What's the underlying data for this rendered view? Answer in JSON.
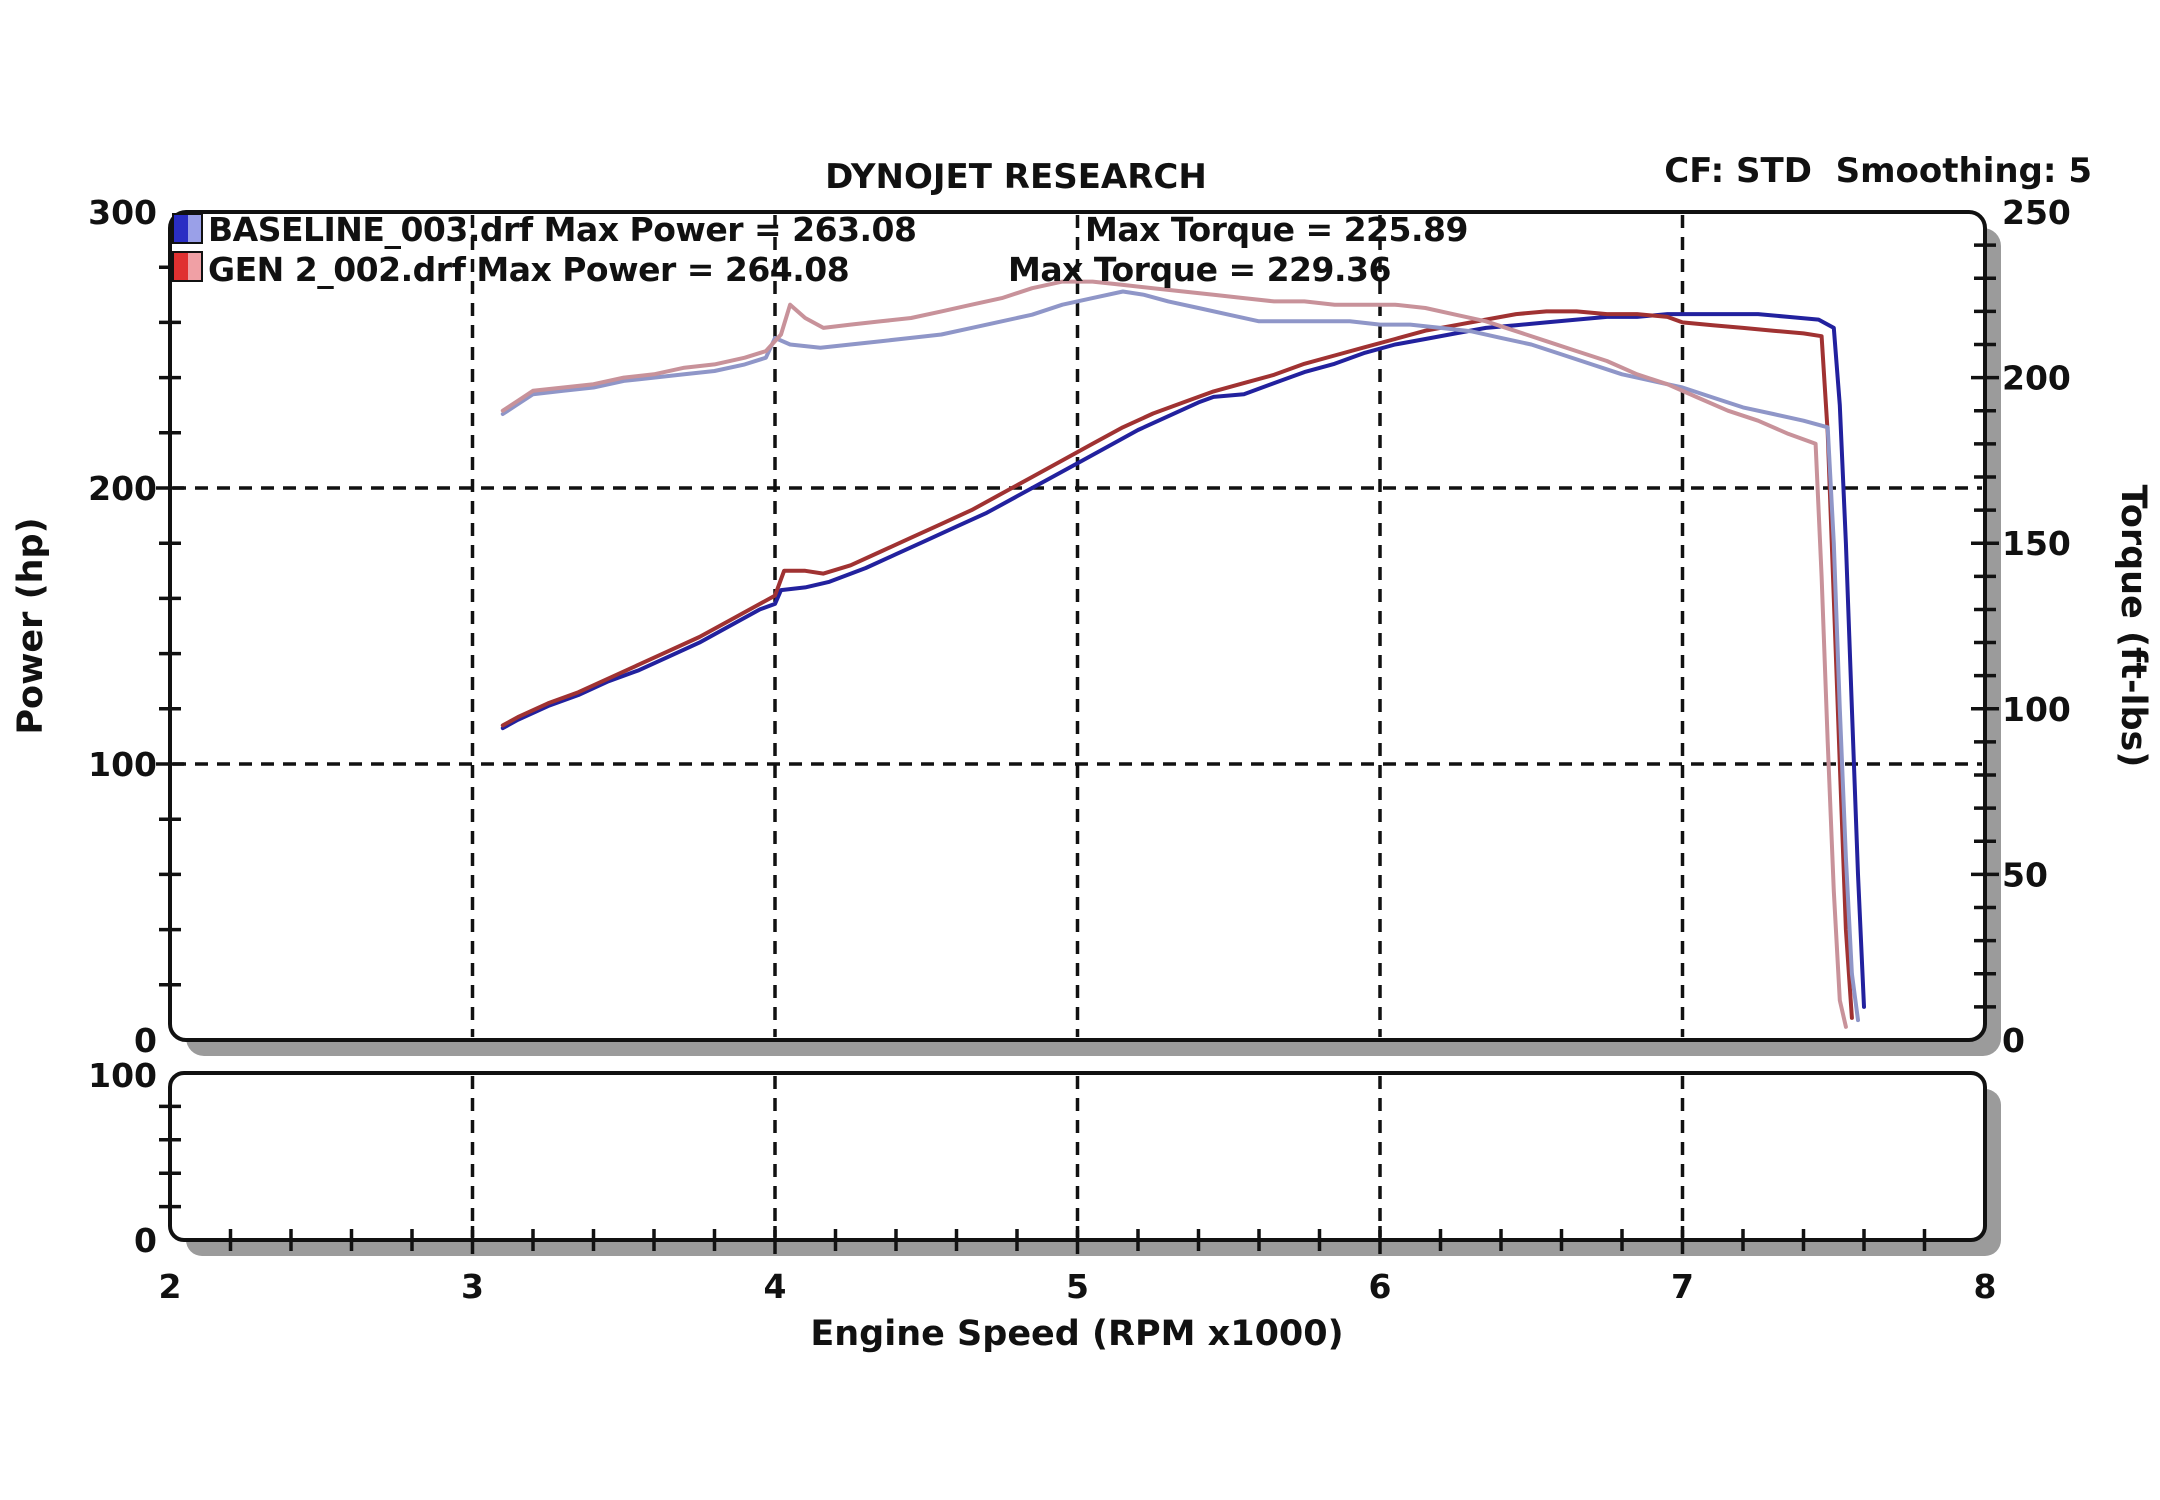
{
  "header": {
    "title": "DYNOJET RESEARCH",
    "corner_info": "CF: STD  Smoothing: 5"
  },
  "chart_data": {
    "type": "line",
    "title": "DYNOJET RESEARCH",
    "corner_info": "CF: STD  Smoothing: 5",
    "xlabel": "Engine Speed (RPM x1000)",
    "ylabel_left": "Power (hp)",
    "ylabel_right": "Torque (ft-lbs)",
    "x_range": [
      2,
      8
    ],
    "y_left_range": [
      0,
      300
    ],
    "y_right_range": [
      0,
      250
    ],
    "sub_panel_range": [
      0,
      100
    ],
    "x_major_ticks": [
      2,
      3,
      4,
      5,
      6,
      7,
      8
    ],
    "x_minor_step": 0.2,
    "y_left_major_ticks": [
      0,
      100,
      200,
      300
    ],
    "y_left_minor_step": 20,
    "y_right_major_ticks": [
      0,
      50,
      100,
      150,
      200,
      250
    ],
    "y_right_minor_step": 10,
    "sub_major_ticks": [
      0,
      100
    ],
    "sub_minor_step": 20,
    "grid_x_values": [
      3,
      4,
      5,
      6,
      7
    ],
    "grid_y_left_values": [
      100,
      200
    ],
    "grid_on": true,
    "legend_position": "top-left",
    "legend": {
      "rows": [
        {
          "label": "BASELINE_003.drf Max Power = 263.08",
          "torque_label": "Max Torque = 225.89",
          "file": "BASELINE_003.drf",
          "max_power": 263.08,
          "max_torque": 225.89,
          "swatch": [
            "#2a2ec4",
            "#9aa0e8"
          ]
        },
        {
          "label": "GEN 2_002.drf Max Power = 264.08",
          "torque_label": "Max Torque = 229.36",
          "file": "GEN 2_002.drf",
          "max_power": 264.08,
          "max_torque": 229.36,
          "swatch": [
            "#e03131",
            "#f0a0a5"
          ]
        }
      ]
    },
    "series": [
      {
        "name": "baseline-power",
        "file": "BASELINE_003.drf",
        "quantity": "power",
        "axis": "left",
        "color": "#22219e",
        "data": [
          [
            3.1,
            113
          ],
          [
            3.15,
            116
          ],
          [
            3.25,
            121
          ],
          [
            3.35,
            125
          ],
          [
            3.45,
            130
          ],
          [
            3.55,
            134
          ],
          [
            3.65,
            139
          ],
          [
            3.75,
            144
          ],
          [
            3.85,
            150
          ],
          [
            3.95,
            156
          ],
          [
            4.0,
            158
          ],
          [
            4.02,
            163
          ],
          [
            4.1,
            164
          ],
          [
            4.18,
            166
          ],
          [
            4.3,
            171
          ],
          [
            4.4,
            176
          ],
          [
            4.5,
            181
          ],
          [
            4.6,
            186
          ],
          [
            4.7,
            191
          ],
          [
            4.8,
            197
          ],
          [
            4.9,
            203
          ],
          [
            5.0,
            209
          ],
          [
            5.1,
            215
          ],
          [
            5.2,
            221
          ],
          [
            5.3,
            226
          ],
          [
            5.4,
            231
          ],
          [
            5.45,
            233
          ],
          [
            5.55,
            234
          ],
          [
            5.65,
            238
          ],
          [
            5.75,
            242
          ],
          [
            5.85,
            245
          ],
          [
            5.95,
            249
          ],
          [
            6.05,
            252
          ],
          [
            6.15,
            254
          ],
          [
            6.25,
            256
          ],
          [
            6.35,
            258
          ],
          [
            6.45,
            259
          ],
          [
            6.55,
            260
          ],
          [
            6.65,
            261
          ],
          [
            6.75,
            262
          ],
          [
            6.85,
            262
          ],
          [
            6.95,
            263
          ],
          [
            7.05,
            263
          ],
          [
            7.15,
            263
          ],
          [
            7.25,
            263
          ],
          [
            7.35,
            262
          ],
          [
            7.45,
            261
          ],
          [
            7.5,
            258
          ],
          [
            7.52,
            230
          ],
          [
            7.54,
            180
          ],
          [
            7.56,
            120
          ],
          [
            7.58,
            60
          ],
          [
            7.6,
            12
          ]
        ]
      },
      {
        "name": "gen2-power",
        "file": "GEN 2_002.drf",
        "quantity": "power",
        "axis": "left",
        "color": "#a03232",
        "data": [
          [
            3.1,
            114
          ],
          [
            3.15,
            117
          ],
          [
            3.25,
            122
          ],
          [
            3.35,
            126
          ],
          [
            3.45,
            131
          ],
          [
            3.55,
            136
          ],
          [
            3.65,
            141
          ],
          [
            3.75,
            146
          ],
          [
            3.85,
            152
          ],
          [
            3.95,
            158
          ],
          [
            4.0,
            161
          ],
          [
            4.03,
            170
          ],
          [
            4.1,
            170
          ],
          [
            4.16,
            169
          ],
          [
            4.25,
            172
          ],
          [
            4.35,
            177
          ],
          [
            4.45,
            182
          ],
          [
            4.55,
            187
          ],
          [
            4.65,
            192
          ],
          [
            4.75,
            198
          ],
          [
            4.85,
            204
          ],
          [
            4.95,
            210
          ],
          [
            5.05,
            216
          ],
          [
            5.15,
            222
          ],
          [
            5.25,
            227
          ],
          [
            5.35,
            231
          ],
          [
            5.45,
            235
          ],
          [
            5.55,
            238
          ],
          [
            5.65,
            241
          ],
          [
            5.75,
            245
          ],
          [
            5.85,
            248
          ],
          [
            5.95,
            251
          ],
          [
            6.05,
            254
          ],
          [
            6.15,
            257
          ],
          [
            6.25,
            259
          ],
          [
            6.35,
            261
          ],
          [
            6.45,
            263
          ],
          [
            6.55,
            264
          ],
          [
            6.65,
            264
          ],
          [
            6.75,
            263
          ],
          [
            6.85,
            263
          ],
          [
            6.95,
            262
          ],
          [
            7.0,
            260
          ],
          [
            7.1,
            259
          ],
          [
            7.2,
            258
          ],
          [
            7.3,
            257
          ],
          [
            7.4,
            256
          ],
          [
            7.46,
            255
          ],
          [
            7.48,
            220
          ],
          [
            7.5,
            160
          ],
          [
            7.52,
            100
          ],
          [
            7.54,
            40
          ],
          [
            7.56,
            8
          ]
        ]
      },
      {
        "name": "baseline-torque",
        "file": "BASELINE_003.drf",
        "quantity": "torque",
        "axis": "right",
        "color": "#8f96c8",
        "data": [
          [
            3.1,
            189
          ],
          [
            3.15,
            192
          ],
          [
            3.2,
            195
          ],
          [
            3.3,
            196
          ],
          [
            3.4,
            197
          ],
          [
            3.5,
            199
          ],
          [
            3.6,
            200
          ],
          [
            3.7,
            201
          ],
          [
            3.8,
            202
          ],
          [
            3.9,
            204
          ],
          [
            3.97,
            206
          ],
          [
            4.0,
            212
          ],
          [
            4.05,
            210
          ],
          [
            4.15,
            209
          ],
          [
            4.25,
            210
          ],
          [
            4.35,
            211
          ],
          [
            4.45,
            212
          ],
          [
            4.55,
            213
          ],
          [
            4.65,
            215
          ],
          [
            4.75,
            217
          ],
          [
            4.85,
            219
          ],
          [
            4.95,
            222
          ],
          [
            5.05,
            224
          ],
          [
            5.15,
            226
          ],
          [
            5.22,
            225
          ],
          [
            5.3,
            223
          ],
          [
            5.4,
            221
          ],
          [
            5.5,
            219
          ],
          [
            5.6,
            217
          ],
          [
            5.75,
            217
          ],
          [
            5.9,
            217
          ],
          [
            6.0,
            216
          ],
          [
            6.1,
            216
          ],
          [
            6.2,
            215
          ],
          [
            6.3,
            214
          ],
          [
            6.4,
            212
          ],
          [
            6.5,
            210
          ],
          [
            6.6,
            207
          ],
          [
            6.7,
            204
          ],
          [
            6.8,
            201
          ],
          [
            6.9,
            199
          ],
          [
            7.0,
            197
          ],
          [
            7.1,
            194
          ],
          [
            7.2,
            191
          ],
          [
            7.3,
            189
          ],
          [
            7.4,
            187
          ],
          [
            7.48,
            185
          ],
          [
            7.5,
            150
          ],
          [
            7.52,
            100
          ],
          [
            7.54,
            55
          ],
          [
            7.56,
            20
          ],
          [
            7.58,
            6
          ]
        ]
      },
      {
        "name": "gen2-torque",
        "file": "GEN 2_002.drf",
        "quantity": "torque",
        "axis": "right",
        "color": "#c8929a",
        "data": [
          [
            3.1,
            190
          ],
          [
            3.15,
            193
          ],
          [
            3.2,
            196
          ],
          [
            3.3,
            197
          ],
          [
            3.4,
            198
          ],
          [
            3.5,
            200
          ],
          [
            3.6,
            201
          ],
          [
            3.7,
            203
          ],
          [
            3.8,
            204
          ],
          [
            3.9,
            206
          ],
          [
            3.97,
            208
          ],
          [
            4.02,
            213
          ],
          [
            4.05,
            222
          ],
          [
            4.1,
            218
          ],
          [
            4.16,
            215
          ],
          [
            4.25,
            216
          ],
          [
            4.35,
            217
          ],
          [
            4.45,
            218
          ],
          [
            4.55,
            220
          ],
          [
            4.65,
            222
          ],
          [
            4.75,
            224
          ],
          [
            4.85,
            227
          ],
          [
            4.95,
            229
          ],
          [
            5.05,
            229
          ],
          [
            5.15,
            228
          ],
          [
            5.25,
            227
          ],
          [
            5.35,
            226
          ],
          [
            5.45,
            225
          ],
          [
            5.55,
            224
          ],
          [
            5.65,
            223
          ],
          [
            5.75,
            223
          ],
          [
            5.85,
            222
          ],
          [
            5.95,
            222
          ],
          [
            6.05,
            222
          ],
          [
            6.15,
            221
          ],
          [
            6.25,
            219
          ],
          [
            6.35,
            217
          ],
          [
            6.45,
            214
          ],
          [
            6.55,
            211
          ],
          [
            6.65,
            208
          ],
          [
            6.75,
            205
          ],
          [
            6.85,
            201
          ],
          [
            6.95,
            198
          ],
          [
            7.05,
            194
          ],
          [
            7.15,
            190
          ],
          [
            7.25,
            187
          ],
          [
            7.35,
            183
          ],
          [
            7.44,
            180
          ],
          [
            7.46,
            140
          ],
          [
            7.48,
            90
          ],
          [
            7.5,
            45
          ],
          [
            7.52,
            12
          ],
          [
            7.54,
            4
          ]
        ]
      }
    ],
    "axis_tick_labels": {
      "y_left": [
        "300",
        "200",
        "100",
        "0"
      ],
      "y_right": [
        "250",
        "200",
        "150",
        "100",
        "50",
        "0"
      ],
      "sub_left": [
        "100",
        "0"
      ],
      "x": [
        "2",
        "3",
        "4",
        "5",
        "6",
        "7",
        "8"
      ]
    },
    "colors": {
      "grid": "#111111",
      "border": "#111111",
      "shadow": "#9b9b9b",
      "background": "#ffffff"
    }
  }
}
